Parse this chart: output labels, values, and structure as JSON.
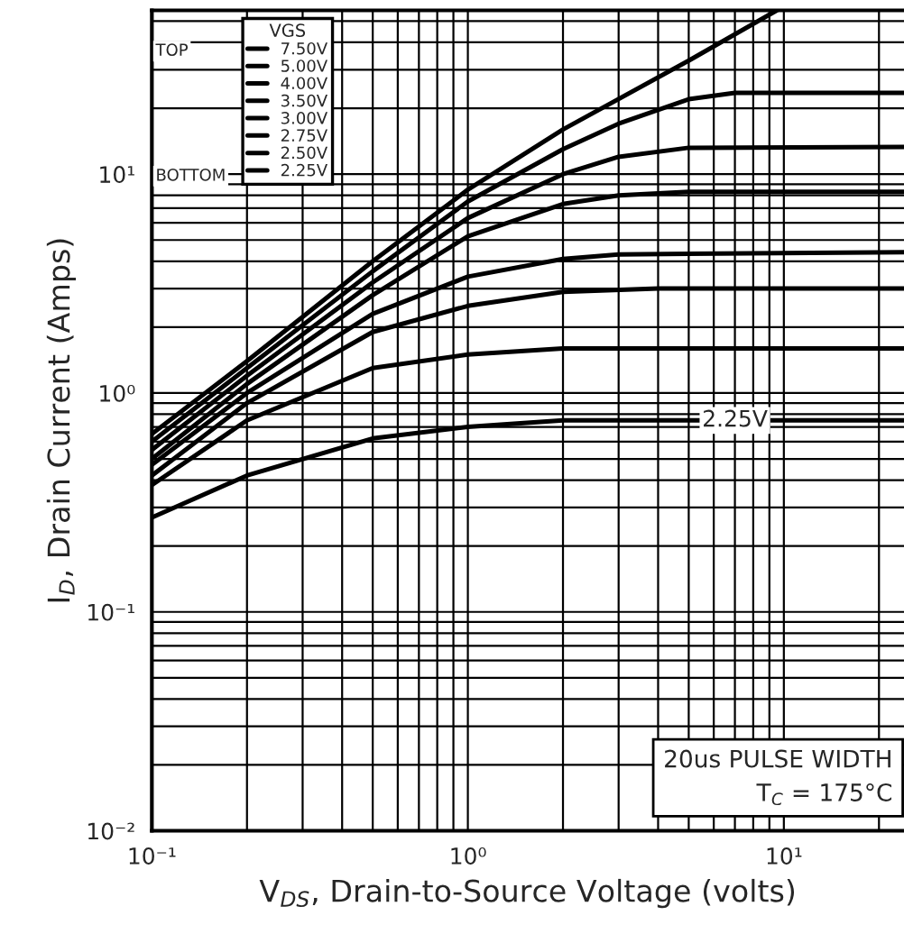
{
  "chart_data": {
    "type": "line",
    "xlabel": "V$_{DS}$, Drain-to-Source Voltage (volts)",
    "ylabel": "I$_{D}$, Drain Current (Amps)",
    "legend_title": "VGS",
    "log": "xy",
    "xlim": [
      0.1,
      24
    ],
    "ylim": [
      0.01,
      56
    ],
    "xticks": [
      {
        "value": 0.1,
        "label": "10⁻¹"
      },
      {
        "value": 1,
        "label": "10⁰"
      },
      {
        "value": 10,
        "label": "10¹"
      }
    ],
    "yticks": [
      {
        "value": 0.01,
        "label": "10⁻²"
      },
      {
        "value": 0.1,
        "label": "10⁻¹"
      },
      {
        "value": 1,
        "label": "10⁰"
      },
      {
        "value": 10,
        "label": "10¹"
      }
    ],
    "grid": true,
    "legend": "top left",
    "marker": "none",
    "line_style": "solid",
    "series": [
      {
        "name": "7.50V",
        "color": "#000000",
        "x": [
          0.1,
          0.2,
          0.5,
          1,
          2,
          5,
          9.5
        ],
        "values": [
          0.65,
          1.4,
          4.0,
          8.5,
          16,
          33,
          56
        ]
      },
      {
        "name": "5.00V",
        "color": "#000000",
        "x": [
          0.1,
          0.2,
          0.5,
          1,
          2,
          3,
          5,
          7,
          24
        ],
        "values": [
          0.6,
          1.3,
          3.6,
          7.5,
          13,
          17,
          22,
          23.5,
          23.5
        ]
      },
      {
        "name": "4.00V",
        "color": "#000000",
        "x": [
          0.1,
          0.2,
          0.5,
          1,
          2,
          3,
          5,
          24
        ],
        "values": [
          0.55,
          1.2,
          3.2,
          6.3,
          10,
          12,
          13.2,
          13.3
        ]
      },
      {
        "name": "3.50V",
        "color": "#000000",
        "x": [
          0.1,
          0.2,
          0.5,
          1,
          2,
          3,
          5,
          24
        ],
        "values": [
          0.5,
          1.1,
          2.8,
          5.2,
          7.3,
          8,
          8.3,
          8.3
        ]
      },
      {
        "name": "3.00V",
        "color": "#000000",
        "x": [
          0.1,
          0.2,
          0.5,
          1,
          2,
          3,
          24
        ],
        "values": [
          0.47,
          1.0,
          2.3,
          3.4,
          4.1,
          4.3,
          4.4
        ]
      },
      {
        "name": "2.75V",
        "color": "#000000",
        "x": [
          0.1,
          0.2,
          0.5,
          1,
          2,
          4,
          24
        ],
        "values": [
          0.42,
          0.9,
          1.9,
          2.5,
          2.9,
          3.0,
          3.0
        ]
      },
      {
        "name": "2.50V",
        "color": "#000000",
        "x": [
          0.1,
          0.2,
          0.5,
          1,
          2,
          24
        ],
        "values": [
          0.38,
          0.75,
          1.3,
          1.5,
          1.6,
          1.6
        ]
      },
      {
        "name": "2.25V",
        "color": "#000000",
        "x": [
          0.1,
          0.2,
          0.5,
          1,
          2,
          24
        ],
        "values": [
          0.27,
          0.42,
          0.62,
          0.7,
          0.75,
          0.75
        ]
      }
    ],
    "annotations": [
      "TOP",
      "BOTTOM",
      {
        "text": "2.25V",
        "x": 7,
        "y": 0.75
      },
      "20us PULSE WIDTH\nT$_{C}$ = 175°C"
    ]
  }
}
